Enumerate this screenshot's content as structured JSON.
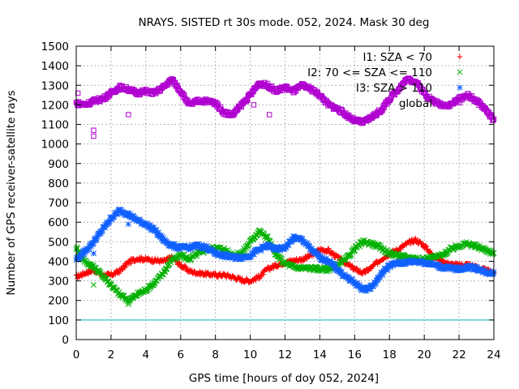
{
  "chart_data": {
    "type": "scatter",
    "title": "NRAYS. SISTED rt 30s mode. 052, 2024. Mask 30 deg",
    "xlabel": "GPS time [hours of doy 052, 2024]",
    "ylabel": "Number of GPS receiver-satellite rays",
    "xlim": [
      0,
      24
    ],
    "ylim": [
      0,
      1500
    ],
    "xticks": [
      0,
      2,
      4,
      6,
      8,
      10,
      12,
      14,
      16,
      18,
      20,
      22,
      24
    ],
    "yticks": [
      0,
      100,
      200,
      300,
      400,
      500,
      600,
      700,
      800,
      900,
      1000,
      1100,
      1200,
      1300,
      1400,
      1500
    ],
    "grid": true,
    "legend_position": "top-right",
    "threshold_line": {
      "value": 100,
      "color": "#00c0d0"
    },
    "series": [
      {
        "name": "I1: SZA < 70",
        "marker": "+",
        "color": "#ff0000",
        "x": [
          0,
          0.5,
          1,
          1.5,
          2,
          2.5,
          3,
          3.5,
          4,
          4.5,
          5,
          5.5,
          6,
          6.5,
          7,
          7.5,
          8,
          8.5,
          9,
          9.5,
          10,
          10.5,
          11,
          11.5,
          12,
          12.5,
          13,
          13.5,
          14,
          14.5,
          15,
          15.5,
          16,
          16.5,
          17,
          17.5,
          18,
          18.5,
          19,
          19.5,
          20,
          20.5,
          21,
          21.5,
          22,
          22.5,
          23,
          23.5,
          24
        ],
        "y": [
          320,
          340,
          355,
          330,
          330,
          350,
          395,
          415,
          410,
          405,
          400,
          420,
          380,
          350,
          340,
          335,
          330,
          330,
          320,
          305,
          300,
          320,
          360,
          380,
          395,
          405,
          410,
          430,
          460,
          455,
          420,
          390,
          360,
          340,
          370,
          410,
          440,
          460,
          490,
          510,
          480,
          430,
          400,
          385,
          380,
          385,
          370,
          355,
          340
        ]
      },
      {
        "name": "I2: 70 <= SZA <= 110",
        "marker": "x",
        "color": "#00b000",
        "x": [
          0,
          0.5,
          1,
          1.5,
          2,
          2.5,
          3,
          3.5,
          4,
          4.5,
          5,
          5.5,
          6,
          6.5,
          7,
          7.5,
          8,
          8.5,
          9,
          9.5,
          10,
          10.5,
          11,
          11.5,
          12,
          12.5,
          13,
          13.5,
          14,
          14.5,
          15,
          15.5,
          16,
          16.5,
          17,
          17.5,
          18,
          18.5,
          19,
          19.5,
          20,
          20.5,
          21,
          21.5,
          22,
          22.5,
          23,
          23.5,
          24
        ],
        "y": [
          470,
          400,
          370,
          330,
          280,
          230,
          200,
          230,
          255,
          290,
          340,
          410,
          430,
          410,
          440,
          460,
          470,
          460,
          430,
          440,
          500,
          555,
          520,
          430,
          390,
          370,
          365,
          365,
          360,
          360,
          380,
          410,
          465,
          500,
          490,
          470,
          440,
          430,
          420,
          415,
          410,
          420,
          430,
          460,
          480,
          490,
          475,
          460,
          440
        ]
      },
      {
        "name": "I3: SZA > 110",
        "marker": "*",
        "color": "#1060ff",
        "x": [
          0,
          0.5,
          1,
          1.5,
          2,
          2.5,
          3,
          3.5,
          4,
          4.5,
          5,
          5.5,
          6,
          6.5,
          7,
          7.5,
          8,
          8.5,
          9,
          9.5,
          10,
          10.5,
          11,
          11.5,
          12,
          12.5,
          13,
          13.5,
          14,
          14.5,
          15,
          15.5,
          16,
          16.5,
          17,
          17.5,
          18,
          18.5,
          19,
          19.5,
          20,
          20.5,
          21,
          21.5,
          22,
          22.5,
          23,
          23.5,
          24
        ],
        "y": [
          410,
          450,
          500,
          560,
          620,
          660,
          640,
          610,
          590,
          560,
          510,
          480,
          470,
          470,
          480,
          470,
          440,
          430,
          420,
          420,
          430,
          460,
          480,
          460,
          470,
          520,
          510,
          460,
          420,
          400,
          360,
          320,
          290,
          255,
          270,
          330,
          380,
          390,
          395,
          400,
          395,
          385,
          370,
          365,
          360,
          370,
          365,
          345,
          340
        ]
      },
      {
        "name": "global",
        "marker": "square",
        "color": "#b000d0",
        "x": [
          0,
          0.5,
          1,
          1.5,
          2,
          2.5,
          3,
          3.5,
          4,
          4.5,
          5,
          5.5,
          6,
          6.5,
          7,
          7.5,
          8,
          8.5,
          9,
          9.5,
          10,
          10.5,
          11,
          11.5,
          12,
          12.5,
          13,
          13.5,
          14,
          14.5,
          15,
          15.5,
          16,
          16.5,
          17,
          17.5,
          18,
          18.5,
          19,
          19.5,
          20,
          20.5,
          21,
          21.5,
          22,
          22.5,
          23,
          23.5,
          24
        ],
        "y": [
          1210,
          1200,
          1220,
          1230,
          1260,
          1290,
          1280,
          1260,
          1270,
          1260,
          1290,
          1330,
          1270,
          1200,
          1220,
          1220,
          1210,
          1160,
          1150,
          1200,
          1250,
          1310,
          1300,
          1270,
          1290,
          1270,
          1300,
          1280,
          1250,
          1200,
          1180,
          1150,
          1120,
          1110,
          1140,
          1170,
          1230,
          1280,
          1330,
          1320,
          1260,
          1220,
          1200,
          1200,
          1230,
          1250,
          1220,
          1180,
          1120
        ]
      }
    ],
    "outliers": [
      {
        "series": "global",
        "x": 0.1,
        "y": 1260
      },
      {
        "series": "global",
        "x": 1.0,
        "y": 1070
      },
      {
        "series": "global",
        "x": 1.0,
        "y": 1040
      },
      {
        "series": "global",
        "x": 3.0,
        "y": 1150
      },
      {
        "series": "global",
        "x": 10.2,
        "y": 1200
      },
      {
        "series": "global",
        "x": 11.1,
        "y": 1150
      },
      {
        "series": "I2: 70 <= SZA <= 110",
        "x": 1.0,
        "y": 280
      },
      {
        "series": "I2: 70 <= SZA <= 110",
        "x": 3.0,
        "y": 180
      },
      {
        "series": "I3: SZA > 110",
        "x": 1.0,
        "y": 440
      },
      {
        "series": "I3: SZA > 110",
        "x": 3.0,
        "y": 590
      }
    ]
  }
}
